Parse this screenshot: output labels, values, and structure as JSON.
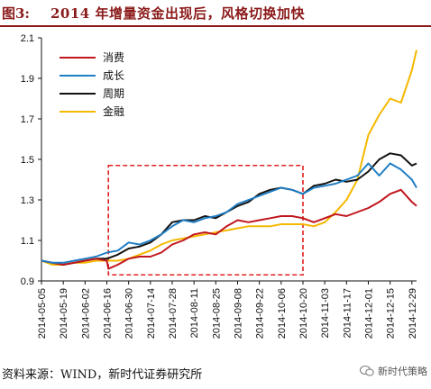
{
  "header": {
    "label": "图3:",
    "title": "2014 年增量资金出现后，风格切换加快"
  },
  "footer": {
    "source": "资料来源：WIND，新时代证券研究所",
    "watermark": "新时代策略"
  },
  "chart_data": {
    "type": "line",
    "title": "2014 年增量资金出现后，风格切换加快",
    "xlabel": "",
    "ylabel": "",
    "ylim": [
      0.9,
      2.1
    ],
    "yticks": [
      0.9,
      1.1,
      1.3,
      1.5,
      1.7,
      1.9,
      2.1
    ],
    "xticks": [
      "2014-05-05",
      "2014-05-19",
      "2014-06-02",
      "2014-06-16",
      "2014-06-30",
      "2014-07-14",
      "2014-07-28",
      "2014-08-11",
      "2014-08-25",
      "2014-09-08",
      "2014-09-22",
      "2014-10-06",
      "2014-10-20",
      "2014-11-03",
      "2014-11-17",
      "2014-12-01",
      "2014-12-15",
      "2014-12-29"
    ],
    "legend_position": "top-left",
    "grid": false,
    "highlight_box": {
      "x_start": "2014-06-17",
      "x_end": "2014-10-20",
      "y_low": 0.93,
      "y_high": 1.47,
      "style": "dashed",
      "color": "#e02020"
    },
    "series": [
      {
        "name": "消费",
        "color": "#c0161d",
        "x": [
          "2014-05-05",
          "2014-05-12",
          "2014-05-19",
          "2014-05-26",
          "2014-06-02",
          "2014-06-09",
          "2014-06-16",
          "2014-06-17",
          "2014-06-23",
          "2014-06-30",
          "2014-07-07",
          "2014-07-14",
          "2014-07-21",
          "2014-07-28",
          "2014-08-04",
          "2014-08-11",
          "2014-08-18",
          "2014-08-25",
          "2014-09-01",
          "2014-09-08",
          "2014-09-15",
          "2014-09-22",
          "2014-09-29",
          "2014-10-06",
          "2014-10-13",
          "2014-10-20",
          "2014-10-27",
          "2014-11-03",
          "2014-11-10",
          "2014-11-17",
          "2014-11-24",
          "2014-12-01",
          "2014-12-08",
          "2014-12-15",
          "2014-12-22",
          "2014-12-29",
          "2015-01-01"
        ],
        "y": [
          1.0,
          0.99,
          0.98,
          0.99,
          1.0,
          1.01,
          1.0,
          0.96,
          0.98,
          1.01,
          1.02,
          1.02,
          1.04,
          1.08,
          1.1,
          1.13,
          1.14,
          1.13,
          1.17,
          1.2,
          1.19,
          1.2,
          1.21,
          1.22,
          1.22,
          1.21,
          1.19,
          1.21,
          1.23,
          1.22,
          1.24,
          1.26,
          1.29,
          1.33,
          1.35,
          1.29,
          1.27
        ]
      },
      {
        "name": "成长",
        "color": "#1f7ec4",
        "x": [
          "2014-05-05",
          "2014-05-12",
          "2014-05-19",
          "2014-05-26",
          "2014-06-02",
          "2014-06-09",
          "2014-06-16",
          "2014-06-23",
          "2014-06-30",
          "2014-07-07",
          "2014-07-14",
          "2014-07-21",
          "2014-07-28",
          "2014-08-04",
          "2014-08-11",
          "2014-08-18",
          "2014-08-25",
          "2014-09-01",
          "2014-09-08",
          "2014-09-15",
          "2014-09-22",
          "2014-09-29",
          "2014-10-06",
          "2014-10-13",
          "2014-10-20",
          "2014-10-27",
          "2014-11-03",
          "2014-11-10",
          "2014-11-17",
          "2014-11-24",
          "2014-12-01",
          "2014-12-08",
          "2014-12-15",
          "2014-12-22",
          "2014-12-29",
          "2015-01-01"
        ],
        "y": [
          1.0,
          0.99,
          0.99,
          1.0,
          1.01,
          1.02,
          1.04,
          1.05,
          1.09,
          1.08,
          1.1,
          1.13,
          1.17,
          1.2,
          1.19,
          1.21,
          1.22,
          1.24,
          1.28,
          1.3,
          1.32,
          1.34,
          1.36,
          1.35,
          1.33,
          1.36,
          1.37,
          1.38,
          1.4,
          1.42,
          1.48,
          1.42,
          1.48,
          1.45,
          1.4,
          1.36
        ]
      },
      {
        "name": "周期",
        "color": "#111111",
        "x": [
          "2014-05-05",
          "2014-05-12",
          "2014-05-19",
          "2014-05-26",
          "2014-06-02",
          "2014-06-09",
          "2014-06-16",
          "2014-06-23",
          "2014-06-30",
          "2014-07-07",
          "2014-07-14",
          "2014-07-21",
          "2014-07-28",
          "2014-08-04",
          "2014-08-11",
          "2014-08-18",
          "2014-08-25",
          "2014-09-01",
          "2014-09-08",
          "2014-09-15",
          "2014-09-22",
          "2014-09-29",
          "2014-10-06",
          "2014-10-13",
          "2014-10-20",
          "2014-10-27",
          "2014-11-03",
          "2014-11-10",
          "2014-11-17",
          "2014-11-24",
          "2014-12-01",
          "2014-12-08",
          "2014-12-15",
          "2014-12-22",
          "2014-12-29",
          "2015-01-01"
        ],
        "y": [
          1.0,
          0.99,
          0.98,
          0.99,
          1.0,
          1.01,
          1.01,
          1.03,
          1.06,
          1.07,
          1.09,
          1.13,
          1.19,
          1.2,
          1.2,
          1.22,
          1.21,
          1.24,
          1.27,
          1.29,
          1.33,
          1.35,
          1.36,
          1.35,
          1.33,
          1.37,
          1.38,
          1.4,
          1.39,
          1.4,
          1.44,
          1.5,
          1.53,
          1.52,
          1.47,
          1.48
        ]
      },
      {
        "name": "金融",
        "color": "#f5b800",
        "x": [
          "2014-05-05",
          "2014-05-12",
          "2014-05-19",
          "2014-05-26",
          "2014-06-02",
          "2014-06-09",
          "2014-06-16",
          "2014-06-23",
          "2014-06-30",
          "2014-07-07",
          "2014-07-14",
          "2014-07-21",
          "2014-07-28",
          "2014-08-04",
          "2014-08-11",
          "2014-08-18",
          "2014-08-25",
          "2014-09-01",
          "2014-09-08",
          "2014-09-15",
          "2014-09-22",
          "2014-09-29",
          "2014-10-06",
          "2014-10-13",
          "2014-10-20",
          "2014-10-27",
          "2014-11-03",
          "2014-11-10",
          "2014-11-17",
          "2014-11-24",
          "2014-12-01",
          "2014-12-08",
          "2014-12-15",
          "2014-12-22",
          "2014-12-29",
          "2015-01-01"
        ],
        "y": [
          1.0,
          0.98,
          0.98,
          0.99,
          0.99,
          1.0,
          1.0,
          1.0,
          1.01,
          1.03,
          1.05,
          1.08,
          1.1,
          1.11,
          1.12,
          1.13,
          1.14,
          1.15,
          1.16,
          1.17,
          1.17,
          1.17,
          1.18,
          1.18,
          1.18,
          1.17,
          1.19,
          1.24,
          1.3,
          1.4,
          1.62,
          1.72,
          1.8,
          1.78,
          1.94,
          2.04
        ]
      }
    ]
  }
}
